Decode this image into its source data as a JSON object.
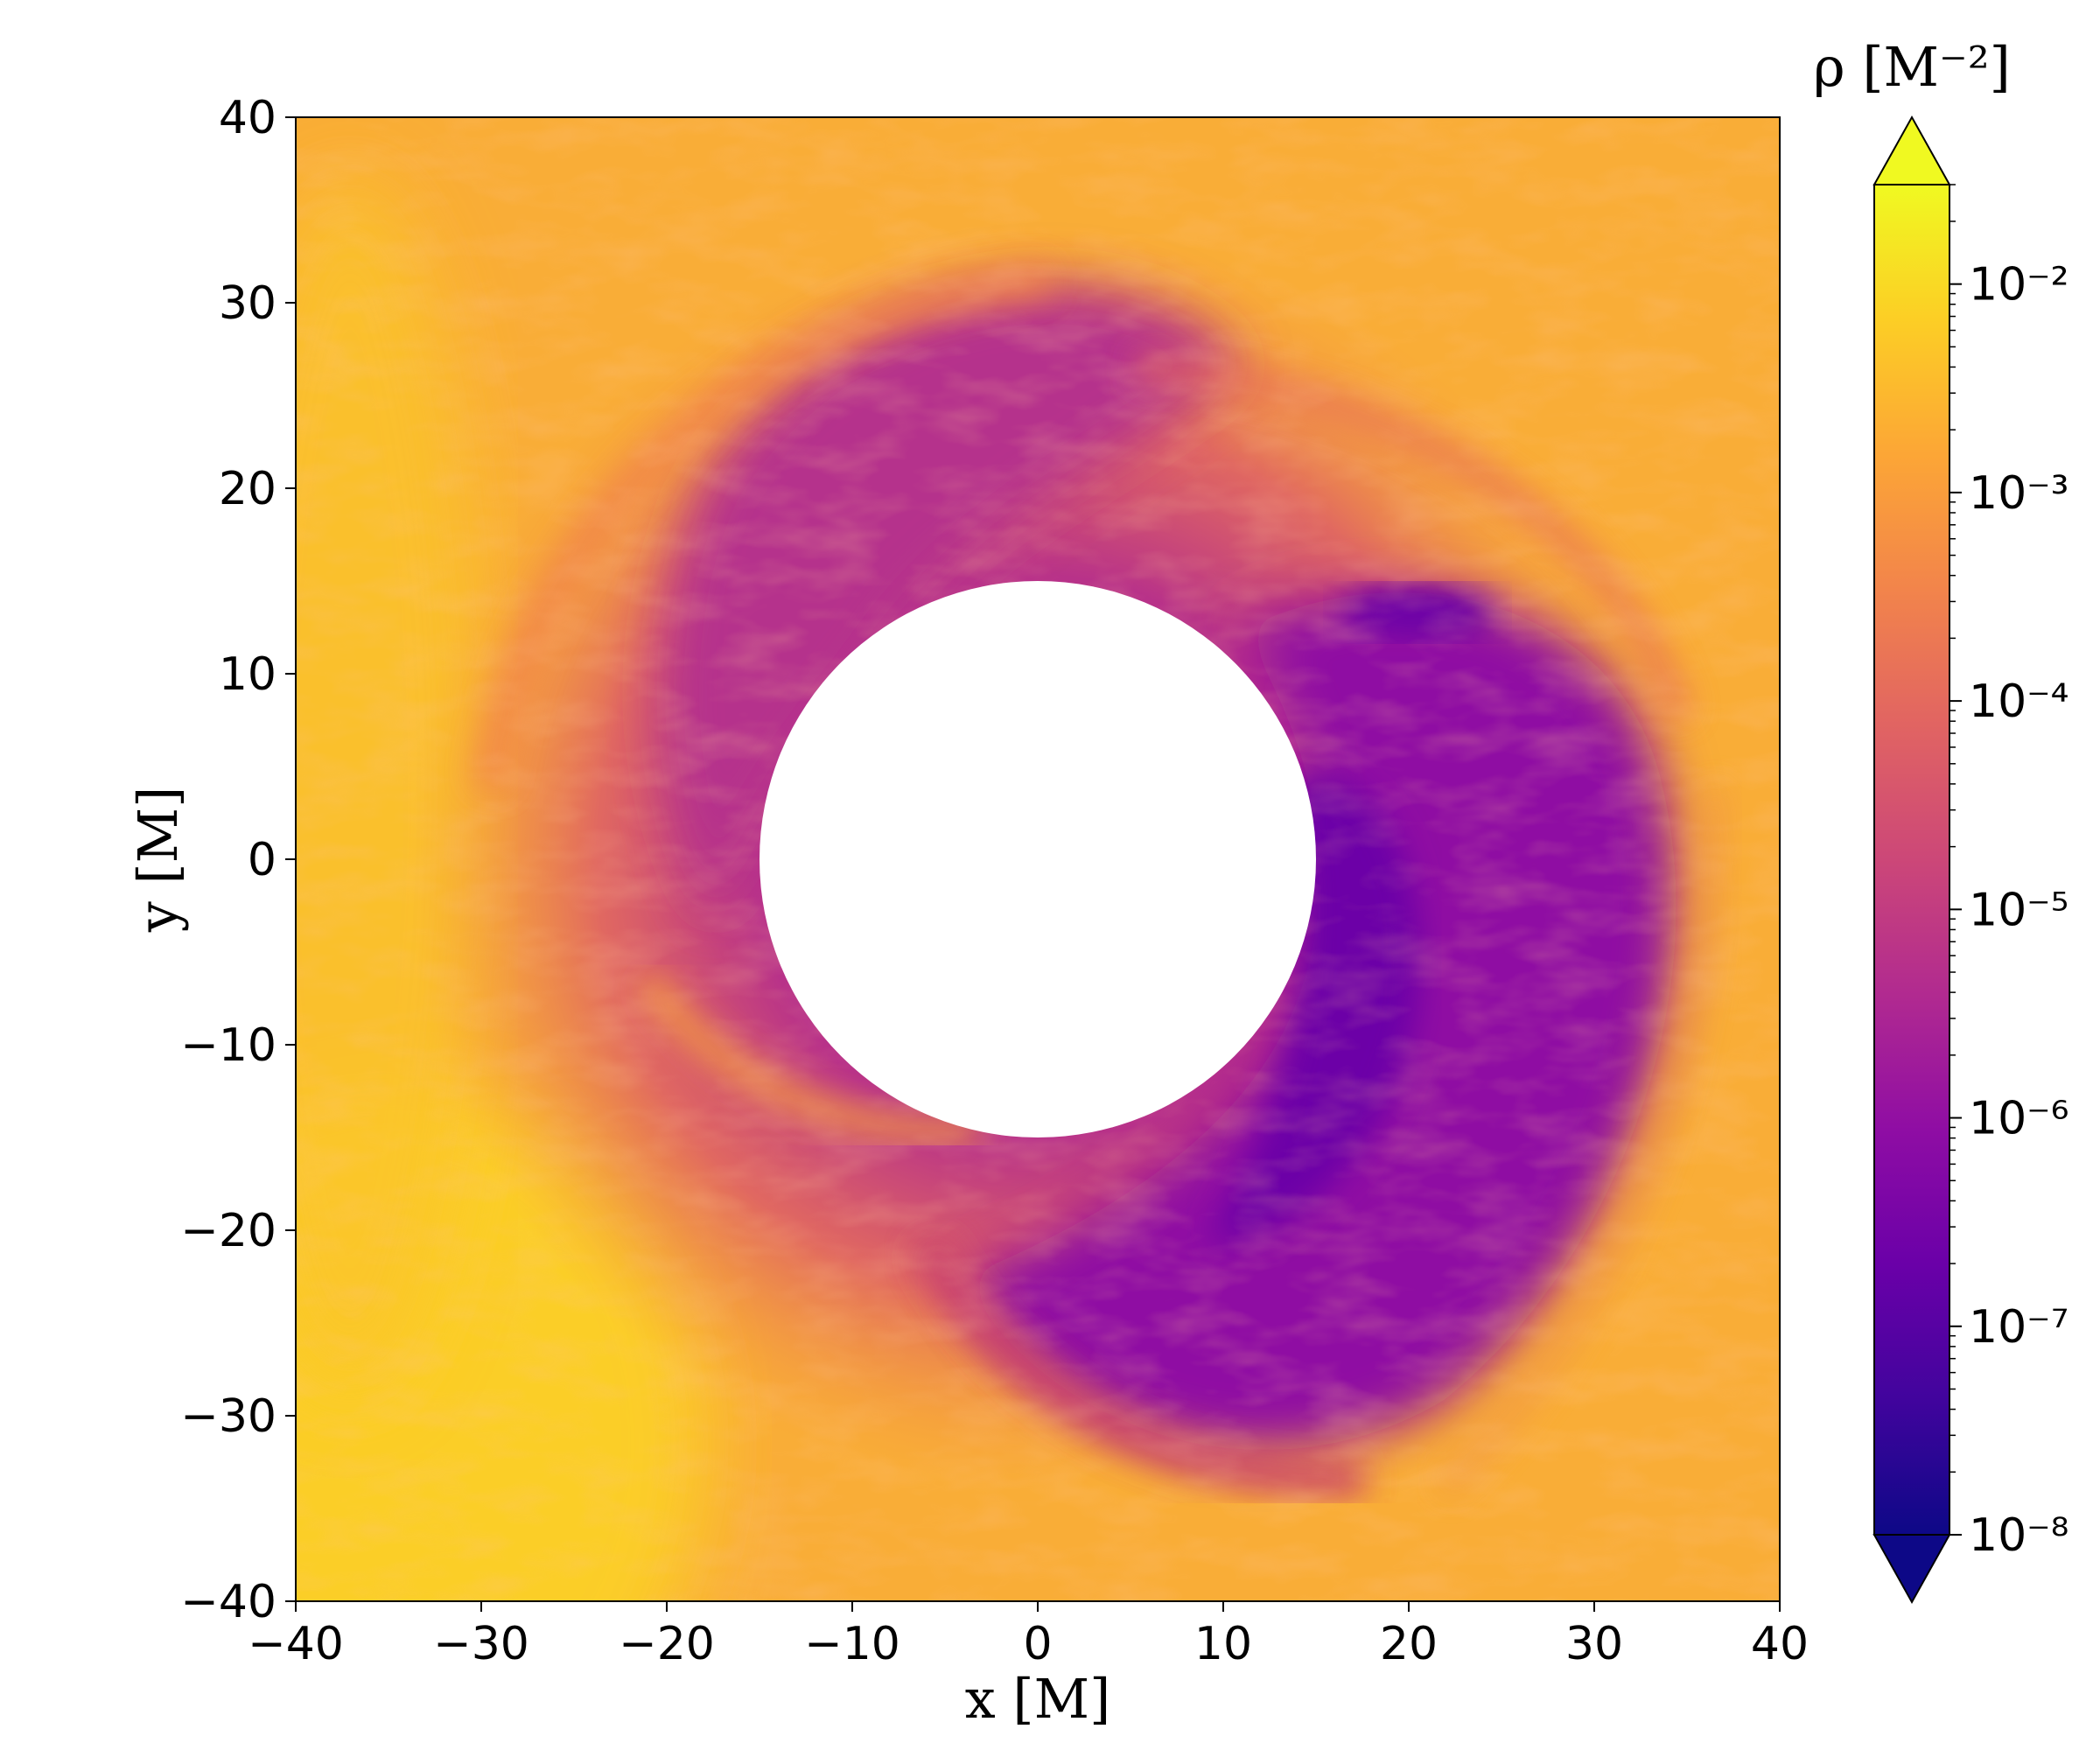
{
  "chart_data": {
    "type": "heatmap",
    "title": "",
    "xlabel": "x [M]",
    "ylabel": "y [M]",
    "xlim": [
      -40,
      40
    ],
    "ylim": [
      -40,
      40
    ],
    "xticks": [
      -40,
      -30,
      -20,
      -10,
      0,
      10,
      20,
      30,
      40
    ],
    "yticks": [
      -40,
      -30,
      -20,
      -10,
      0,
      10,
      20,
      30,
      40
    ],
    "xtick_labels": [
      "−40",
      "−30",
      "−20",
      "−10",
      "0",
      "10",
      "20",
      "30",
      "40"
    ],
    "ytick_labels": [
      "−40",
      "−30",
      "−20",
      "−10",
      "0",
      "10",
      "20",
      "30",
      "40"
    ],
    "colorbar": {
      "label": "ρ [M⁻²]",
      "scale": "log",
      "colormap": "plasma",
      "range": [
        1e-08,
        0.03
      ],
      "extend": "both",
      "ticks": [
        1e-08,
        1e-07,
        1e-06,
        1e-05,
        0.0001,
        0.001,
        0.01
      ],
      "tick_labels": [
        "10⁻⁸",
        "10⁻⁷",
        "10⁻⁶",
        "10⁻⁵",
        "10⁻⁴",
        "10⁻³",
        "10⁻²"
      ]
    },
    "excised_region": {
      "shape": "circle",
      "center": [
        0,
        0
      ],
      "radius": 15
    },
    "grid": false
  }
}
